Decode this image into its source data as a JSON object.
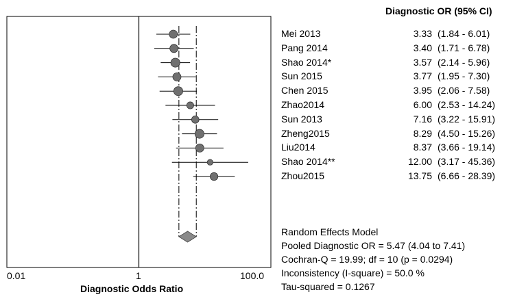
{
  "chart_data": {
    "type": "forest",
    "x_scale": "log",
    "xlim": [
      0.01,
      100
    ],
    "xticks": [
      "0.01",
      "1",
      "100.0"
    ],
    "xlabel": "Diagnostic Odds Ratio",
    "column_header": "Diagnostic OR (95% CI)",
    "reference_line": 1,
    "pooled": {
      "or": 5.47,
      "ci_low": 4.04,
      "ci_high": 7.41
    },
    "studies": [
      {
        "name": "Mei 2013",
        "or_text": "3.33",
        "ci_text": "(1.84 - 6.01)",
        "or": 3.33,
        "lo": 1.84,
        "hi": 6.01,
        "weight": 1.0
      },
      {
        "name": "Pang 2014",
        "or_text": "3.40",
        "ci_text": "(1.71 - 6.78)",
        "or": 3.4,
        "lo": 1.71,
        "hi": 6.78,
        "weight": 1.0
      },
      {
        "name": "Shao 2014*",
        "or_text": "3.57",
        "ci_text": "(2.14 - 5.96)",
        "or": 3.57,
        "lo": 2.14,
        "hi": 5.96,
        "weight": 1.1
      },
      {
        "name": "Sun 2015",
        "or_text": "3.77",
        "ci_text": "(1.95 - 7.30)",
        "or": 3.77,
        "lo": 1.95,
        "hi": 7.3,
        "weight": 1.0
      },
      {
        "name": "Chen 2015",
        "or_text": "3.95",
        "ci_text": "(2.06 - 7.58)",
        "or": 3.95,
        "lo": 2.06,
        "hi": 7.58,
        "weight": 1.1
      },
      {
        "name": "Zhao2014",
        "or_text": "6.00",
        "ci_text": "(2.53 - 14.24)",
        "or": 6.0,
        "lo": 2.53,
        "hi": 14.24,
        "weight": 0.85
      },
      {
        "name": "Sun 2013",
        "or_text": "7.16",
        "ci_text": "(3.22 - 15.91)",
        "or": 7.16,
        "lo": 3.22,
        "hi": 15.91,
        "weight": 0.9
      },
      {
        "name": "Zheng2015",
        "or_text": "8.29",
        "ci_text": "(4.50 - 15.26)",
        "or": 8.29,
        "lo": 4.5,
        "hi": 15.26,
        "weight": 1.1
      },
      {
        "name": "Liu2014",
        "or_text": "8.37",
        "ci_text": "(3.66 - 19.14)",
        "or": 8.37,
        "lo": 3.66,
        "hi": 19.14,
        "weight": 1.0
      },
      {
        "name": "Shao 2014**",
        "or_text": "12.00",
        "ci_text": "(3.17 - 45.36)",
        "or": 12.0,
        "lo": 3.17,
        "hi": 45.36,
        "weight": 0.7
      },
      {
        "name": "Zhou2015",
        "or_text": "13.75",
        "ci_text": "(6.66 - 28.39)",
        "or": 13.75,
        "lo": 6.66,
        "hi": 28.39,
        "weight": 0.95
      }
    ],
    "summary_lines": [
      "Random Effects Model",
      "Pooled Diagnostic  OR = 5.47 (4.04 to 7.41)",
      "Cochran-Q = 19.99; df =  10 (p = 0.0294)",
      "Inconsistency (I-square) = 50.0 %",
      "Tau-squared = 0.1267"
    ],
    "colors": {
      "marker": "#707070",
      "line": "#000000",
      "pooled": "#8a8a8a"
    }
  }
}
